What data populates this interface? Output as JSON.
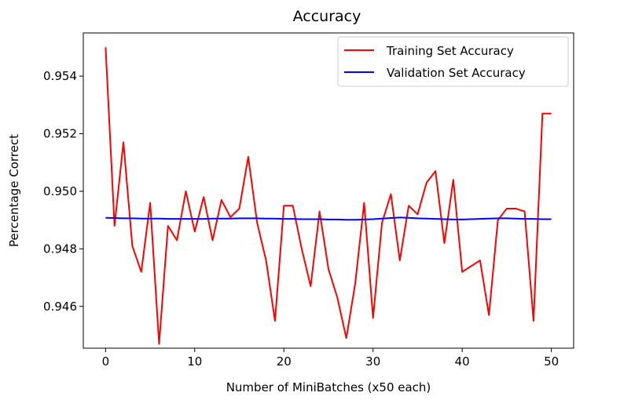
{
  "chart_data": {
    "type": "line",
    "title": "Accuracy",
    "xlabel": "Number of MiniBatches (x50 each)",
    "ylabel": "Percentage Correct",
    "xlim": [
      -2.5,
      52.5
    ],
    "ylim": [
      0.94455,
      0.9555
    ],
    "x_ticks": [
      0,
      10,
      20,
      30,
      40,
      50
    ],
    "y_ticks": [
      0.946,
      0.948,
      0.95,
      0.952,
      0.954
    ],
    "x_tick_labels": [
      "0",
      "10",
      "20",
      "30",
      "40",
      "50"
    ],
    "y_tick_labels": [
      "0.946",
      "0.948",
      "0.950",
      "0.952",
      "0.954"
    ],
    "grid": false,
    "legend_position": "top-right",
    "x": [
      0,
      1,
      2,
      3,
      4,
      5,
      6,
      7,
      8,
      9,
      10,
      11,
      12,
      13,
      14,
      15,
      16,
      17,
      18,
      19,
      20,
      21,
      22,
      23,
      24,
      25,
      26,
      27,
      28,
      29,
      30,
      31,
      32,
      33,
      34,
      35,
      36,
      37,
      38,
      39,
      40,
      41,
      42,
      43,
      44,
      45,
      46,
      47,
      48,
      49,
      50
    ],
    "series": [
      {
        "name": "Training Set Accuracy",
        "color": "#ff0000",
        "values": [
          0.955,
          0.9488,
          0.9517,
          0.9481,
          0.9472,
          0.9496,
          0.9447,
          0.9488,
          0.9483,
          0.95,
          0.9486,
          0.9498,
          0.9483,
          0.9497,
          0.9491,
          0.9494,
          0.9512,
          0.9489,
          0.9476,
          0.9455,
          0.9495,
          0.9495,
          0.948,
          0.9467,
          0.9493,
          0.9473,
          0.9463,
          0.9449,
          0.9468,
          0.9496,
          0.9456,
          0.9489,
          0.9499,
          0.9476,
          0.9495,
          0.9492,
          0.9503,
          0.9507,
          0.9482,
          0.9504,
          0.9472,
          0.9474,
          0.9476,
          0.9457,
          0.949,
          0.9494,
          0.9494,
          0.9493,
          0.9455,
          0.9527,
          0.9527
        ]
      },
      {
        "name": "Validation Set Accuracy",
        "color": "#0000ff",
        "values": [
          0.94908,
          0.94907,
          0.94906,
          0.94906,
          0.94905,
          0.94905,
          0.94905,
          0.94904,
          0.94904,
          0.94904,
          0.94904,
          0.94904,
          0.94905,
          0.94905,
          0.94905,
          0.94906,
          0.94906,
          0.94906,
          0.94905,
          0.94905,
          0.94904,
          0.94904,
          0.94903,
          0.94903,
          0.94903,
          0.94902,
          0.94902,
          0.94901,
          0.94901,
          0.94902,
          0.94903,
          0.94905,
          0.94907,
          0.94909,
          0.94908,
          0.94906,
          0.94905,
          0.94904,
          0.94903,
          0.94902,
          0.94902,
          0.94903,
          0.94904,
          0.94905,
          0.94906,
          0.94906,
          0.94905,
          0.94904,
          0.94904,
          0.94903,
          0.94903
        ]
      }
    ]
  }
}
